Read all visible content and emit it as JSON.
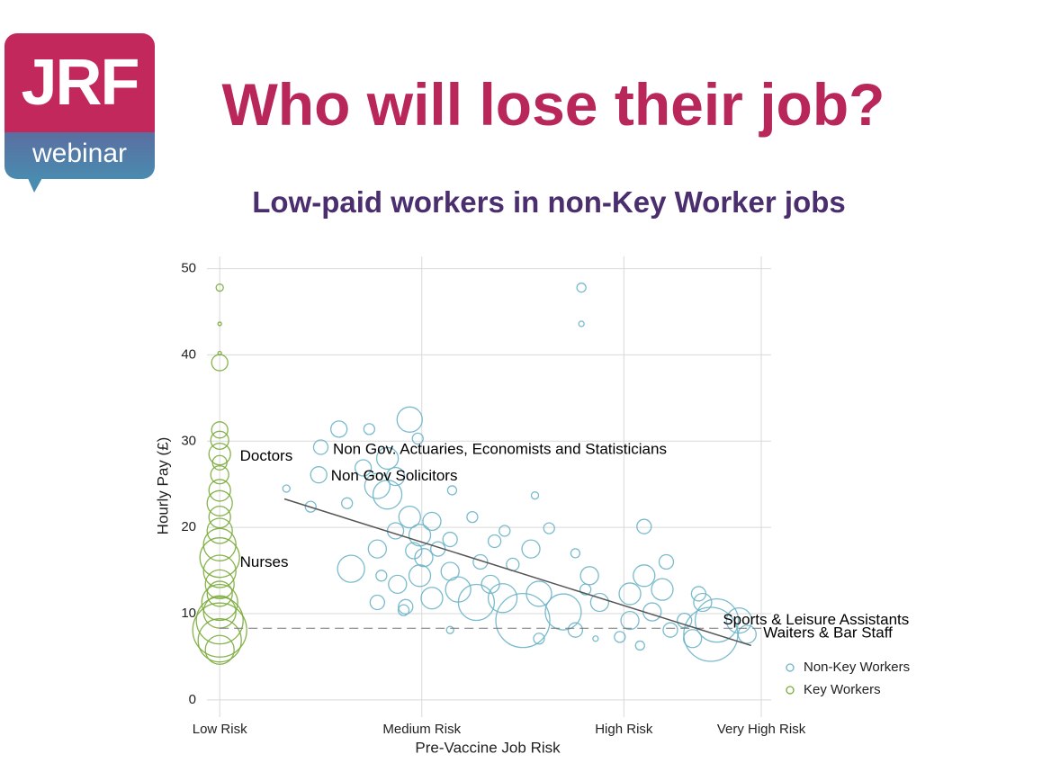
{
  "logo": {
    "brand": "JRF",
    "label": "webinar"
  },
  "title": "Who will lose their job?",
  "subtitle": "Low-paid workers in non-Key Worker jobs",
  "chart_data": {
    "type": "scatter",
    "x_label": "Pre-Vaccine Job Risk",
    "y_label": "Hourly Pay (£)",
    "xlim": [
      -0.13,
      2.72
    ],
    "ylim": [
      -2,
      51
    ],
    "xticks": [
      {
        "value": 0,
        "label": "Low Risk"
      },
      {
        "value": 1,
        "label": "Medium Risk"
      },
      {
        "value": 2,
        "label": "High Risk"
      },
      {
        "value": 2.68,
        "label": "Very High Risk"
      }
    ],
    "yticks": [
      0,
      10,
      20,
      30,
      40,
      50
    ],
    "grid": true,
    "legend": "bottom-right",
    "series": [
      {
        "name": "Non-Key Workers",
        "color": "#6cb4c8",
        "x": [
          1.79,
          1.79,
          0.59,
          0.94,
          0.74,
          0.5,
          0.98,
          0.83,
          0.71,
          0.49,
          0.78,
          0.87,
          0.33,
          1.15,
          1.56,
          0.63,
          0.45,
          0.83,
          0.94,
          1.05,
          1.25,
          0.87,
          0.99,
          1.14,
          1.41,
          1.63,
          2.1,
          0.65,
          0.78,
          0.96,
          1.08,
          1.36,
          1.54,
          1.76,
          0.8,
          0.88,
          0.99,
          1.14,
          1.29,
          1.45,
          0.92,
          1.05,
          1.18,
          1.27,
          1.4,
          1.58,
          1.5,
          1.7,
          1.83,
          1.88,
          2.03,
          2.1,
          2.21,
          2.19,
          2.14,
          2.03,
          2.3,
          2.23,
          2.08,
          1.98,
          1.86,
          1.14,
          0.91,
          0.78,
          2.39,
          2.46,
          2.43,
          2.57,
          2.61,
          2.34,
          2.37,
          1.76,
          1.58,
          1.81,
          1.01,
          1.34
        ],
        "values": [
          47.8,
          43.6,
          31.4,
          32.5,
          31.4,
          29.3,
          30.3,
          28.0,
          26.9,
          26.1,
          24.8,
          25.9,
          24.5,
          24.3,
          23.7,
          22.8,
          22.4,
          23.8,
          21.2,
          20.7,
          21.2,
          19.6,
          19.1,
          18.6,
          19.6,
          19.9,
          20.1,
          15.2,
          17.5,
          17.3,
          17.5,
          18.4,
          17.5,
          17.0,
          14.4,
          13.4,
          14.4,
          14.9,
          16.0,
          15.7,
          10.8,
          11.8,
          12.8,
          11.3,
          11.8,
          12.3,
          9.2,
          10.2,
          14.4,
          11.3,
          12.3,
          14.4,
          16.0,
          12.8,
          10.2,
          9.2,
          9.2,
          8.1,
          6.3,
          7.3,
          7.1,
          8.1,
          10.4,
          11.3,
          11.3,
          9.2,
          7.6,
          9.2,
          7.6,
          7.1,
          12.3,
          8.1,
          7.1,
          12.8,
          16.5,
          13.4
        ],
        "sizes": [
          5,
          3,
          9,
          14,
          6,
          8,
          6,
          12,
          9,
          9,
          14,
          10,
          4,
          5,
          4,
          6,
          6,
          16,
          12,
          10,
          6,
          9,
          12,
          8,
          6,
          6,
          8,
          15,
          10,
          9,
          8,
          7,
          10,
          5,
          6,
          10,
          12,
          10,
          8,
          7,
          8,
          12,
          14,
          20,
          16,
          14,
          30,
          20,
          10,
          10,
          12,
          12,
          8,
          12,
          10,
          10,
          8,
          8,
          5,
          6,
          3,
          4,
          6,
          8,
          10,
          24,
          30,
          14,
          10,
          10,
          8,
          8,
          6,
          6,
          10,
          10
        ]
      },
      {
        "name": "Key Workers",
        "color": "#7aab3a",
        "x": [
          0,
          0,
          0,
          0,
          0,
          0,
          0,
          0,
          0,
          0,
          0,
          0,
          0,
          0,
          0,
          0,
          0,
          0,
          0,
          0,
          0,
          0,
          0,
          0
        ],
        "values": [
          47.8,
          43.6,
          40.2,
          39.1,
          31.3,
          30.1,
          28.5,
          27.5,
          26.1,
          24.3,
          22.8,
          21.2,
          19.6,
          18.0,
          16.5,
          14.9,
          13.4,
          12.3,
          11.3,
          10.2,
          9.2,
          8.1,
          6.9,
          5.8
        ],
        "sizes": [
          4,
          2,
          2,
          9,
          9,
          10,
          12,
          8,
          10,
          12,
          14,
          12,
          14,
          18,
          22,
          18,
          16,
          14,
          20,
          18,
          26,
          30,
          24,
          16
        ]
      }
    ],
    "fit_line": {
      "x": [
        0.32,
        2.63
      ],
      "y": [
        23.3,
        6.3
      ]
    },
    "reference_line": 8.3,
    "annotations": [
      {
        "text": "Doctors",
        "x": 0.1,
        "y": 28.2
      },
      {
        "text": "Nurses",
        "x": 0.1,
        "y": 15.9
      },
      {
        "text": "Non Gov. Actuaries, Economists and Statisticians",
        "x": 0.56,
        "y": 29.0
      },
      {
        "text": "Non Gov Solicitors",
        "x": 0.55,
        "y": 25.9
      },
      {
        "text": "Sports & Leisure Assistants",
        "x": 2.49,
        "y": 9.2
      },
      {
        "text": "Waiters & Bar Staff",
        "x": 2.69,
        "y": 7.7
      }
    ]
  }
}
